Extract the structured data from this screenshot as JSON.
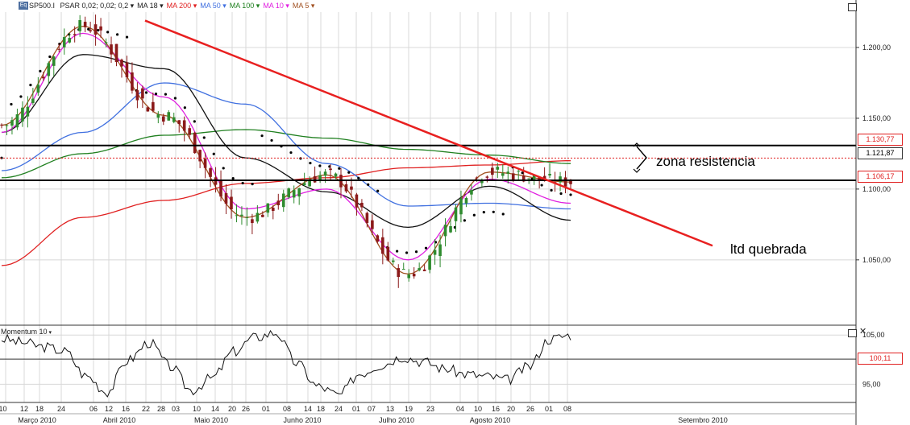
{
  "header": {
    "symbol": "SP500.I",
    "symbol_tag": "Eq",
    "indicators": [
      {
        "label": "PSAR 0,02; 0,02; 0,2",
        "color": "#000000"
      },
      {
        "label": "MA 18",
        "color": "#000000"
      },
      {
        "label": "MA 200",
        "color": "#e02020"
      },
      {
        "label": "MA 50",
        "color": "#4070e0"
      },
      {
        "label": "MA 100",
        "color": "#208020"
      },
      {
        "label": "MA 10",
        "color": "#e020e0"
      },
      {
        "label": "MA 5",
        "color": "#a05020"
      }
    ]
  },
  "colors": {
    "support_resistance": "#000000",
    "trendline": "#e82020",
    "current_price": "#e02020",
    "candle_up": "#2e8b2e",
    "candle_down": "#8b1a1a",
    "background": "#ffffff",
    "grid": "#d8d8d8"
  },
  "annotations": {
    "zone_label": "zona resistencia",
    "trend_label": "ltd quebrada"
  },
  "price_tags": {
    "upper": "1.130,77",
    "current": "1.121,87",
    "lower": "1.106,17",
    "momentum": "100,11"
  },
  "momentum": {
    "title": "Momentum 10",
    "ticks": [
      "105,00",
      "95,00"
    ]
  },
  "chart_data": [
    {
      "type": "candlestick",
      "title": "",
      "y_ticks": [
        "1.200,00",
        "1.150,00",
        "1.100,00",
        "1.050,00"
      ],
      "ylim": [
        1005,
        1225
      ],
      "x_day_labels": [
        "010",
        "12",
        "18",
        "24",
        "06",
        "12",
        "16",
        "22",
        "28",
        "03",
        "10",
        "14",
        "20",
        "26",
        "01",
        "08",
        "14",
        "18",
        "24",
        "01",
        "07",
        "13",
        "19",
        "23",
        "04",
        "10",
        "16",
        "20",
        "26",
        "01",
        "08"
      ],
      "x_month_labels": [
        "Março 2010",
        "Abril 2010",
        "Maio 2010",
        "Junho 2010",
        "Julho 2010",
        "Agosto 2010",
        "Setembro 2010"
      ],
      "ohlc_summary": {
        "start_close": 1118,
        "april_high": 1219,
        "july_low": 1011,
        "last_close": 1121.87
      },
      "horizontal_levels": [
        1130.77,
        1106.17
      ],
      "current_price": 1121.87,
      "trendline": {
        "from": {
          "date": "2010-04-23",
          "value": 1219
        },
        "to": {
          "date": "2010-09-30",
          "value": 1060
        }
      },
      "series": [
        {
          "name": "MA 200",
          "values": [
            1046,
            1080,
            1092,
            1104,
            1108,
            1115,
            1117,
            1120
          ]
        },
        {
          "name": "MA 100",
          "values": [
            1108,
            1125,
            1138,
            1142,
            1136,
            1128,
            1124,
            1118
          ]
        },
        {
          "name": "MA 50",
          "values": [
            1113,
            1140,
            1175,
            1160,
            1118,
            1088,
            1090,
            1086
          ]
        },
        {
          "name": "MA 18",
          "values": [
            1140,
            1195,
            1185,
            1122,
            1098,
            1073,
            1102,
            1078
          ]
        },
        {
          "name": "MA 10",
          "values": [
            1140,
            1210,
            1165,
            1086,
            1100,
            1050,
            1107,
            1090
          ]
        },
        {
          "name": "MA 5",
          "values": [
            1145,
            1215,
            1152,
            1080,
            1110,
            1040,
            1112,
            1105
          ]
        }
      ]
    },
    {
      "type": "line",
      "title": "Momentum 10",
      "y_ticks": [
        "105,00",
        "95,00"
      ],
      "ylim": [
        91.3,
        107
      ],
      "reference": 100.11,
      "series": [
        {
          "name": "Momentum 10",
          "values": [
            104.2,
            103.5,
            102.6,
            101.7,
            96.7,
            93.5,
            99.9,
            103.5,
            98.6,
            93.8,
            96.3,
            101.6,
            104.5,
            105.5,
            99.3,
            94.6,
            92.8,
            97.2,
            98.9,
            100.6,
            99.6,
            98.2,
            97.1,
            96.6,
            95.9,
            98.5,
            104.2,
            105.0
          ]
        }
      ]
    }
  ]
}
